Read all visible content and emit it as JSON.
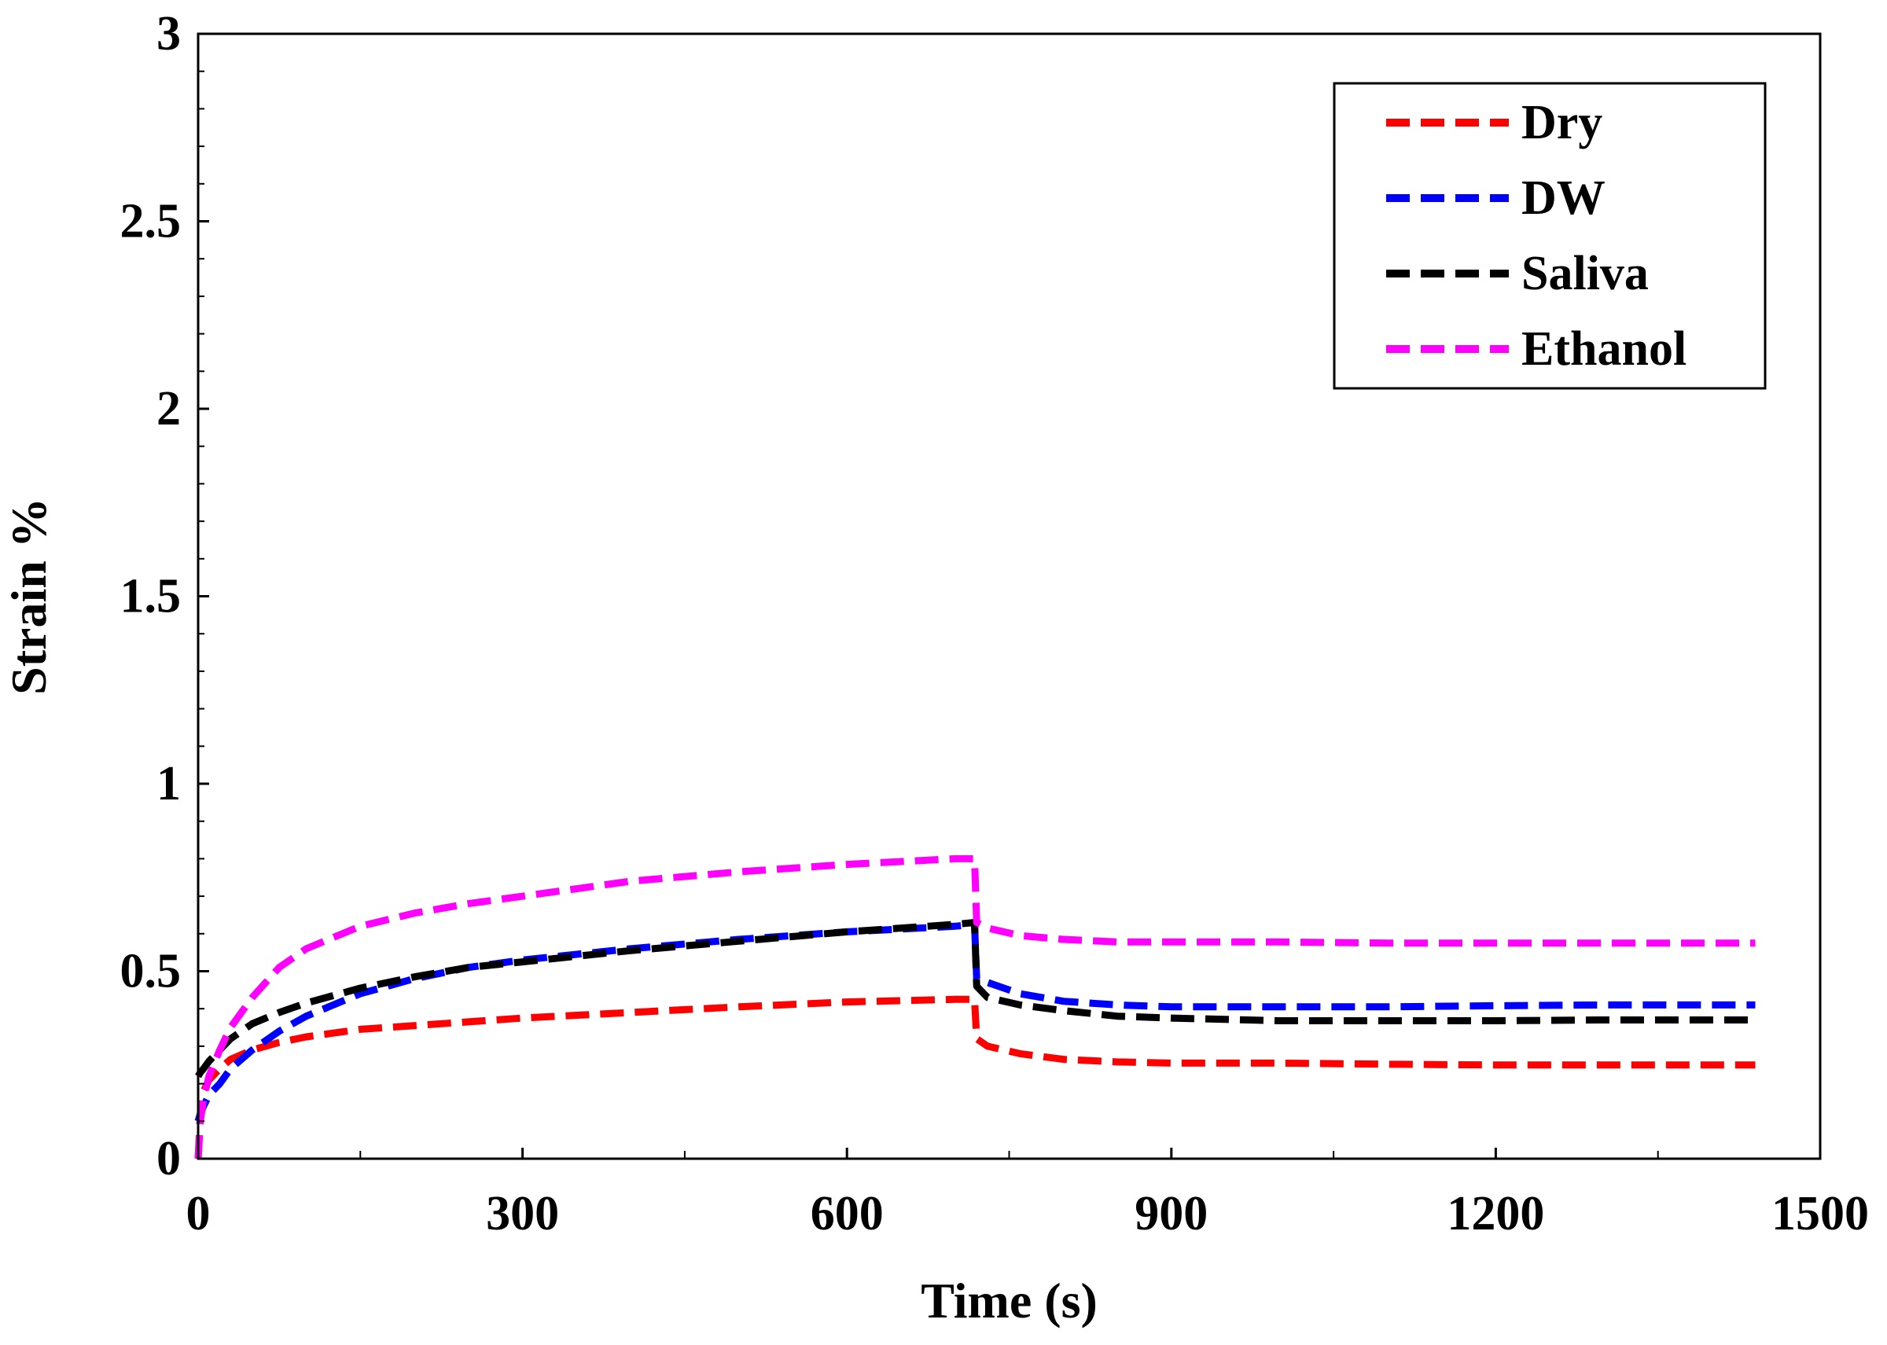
{
  "chart_data": {
    "type": "line",
    "title": "",
    "xlabel": "Time (s)",
    "ylabel": "Strain %",
    "xlim": [
      0,
      1500
    ],
    "ylim": [
      0,
      3
    ],
    "xticks": [
      0,
      300,
      600,
      900,
      1200,
      1500
    ],
    "xtick_labels": [
      "0",
      "300",
      "600",
      "900",
      "1200",
      "1500"
    ],
    "yticks": [
      0,
      0.5,
      1,
      1.5,
      2,
      2.5,
      3
    ],
    "ytick_labels": [
      "0",
      "0.5",
      "1",
      "1.5",
      "2",
      "2.5",
      "3"
    ],
    "grid": false,
    "legend_position": "top-right",
    "series": [
      {
        "name": "Dry",
        "color": "#ff0000",
        "x": [
          0,
          2,
          5,
          10,
          20,
          30,
          50,
          75,
          100,
          150,
          200,
          250,
          300,
          400,
          500,
          600,
          700,
          718,
          720,
          730,
          760,
          800,
          850,
          900,
          1000,
          1100,
          1200,
          1300,
          1440
        ],
        "y": [
          0,
          0.12,
          0.18,
          0.21,
          0.24,
          0.265,
          0.29,
          0.31,
          0.325,
          0.345,
          0.355,
          0.365,
          0.375,
          0.39,
          0.405,
          0.418,
          0.425,
          0.425,
          0.32,
          0.3,
          0.28,
          0.265,
          0.258,
          0.255,
          0.255,
          0.252,
          0.25,
          0.25,
          0.25
        ]
      },
      {
        "name": "DW",
        "color": "#0000ff",
        "x": [
          0,
          2,
          5,
          10,
          20,
          30,
          50,
          75,
          100,
          150,
          200,
          250,
          300,
          400,
          500,
          600,
          700,
          718,
          720,
          730,
          760,
          800,
          850,
          900,
          1000,
          1100,
          1200,
          1300,
          1440
        ],
        "y": [
          0.1,
          0.12,
          0.14,
          0.17,
          0.2,
          0.24,
          0.29,
          0.34,
          0.38,
          0.44,
          0.48,
          0.51,
          0.53,
          0.56,
          0.585,
          0.605,
          0.62,
          0.625,
          0.48,
          0.47,
          0.44,
          0.42,
          0.41,
          0.405,
          0.405,
          0.405,
          0.408,
          0.41,
          0.41
        ]
      },
      {
        "name": "Saliva",
        "color": "#000000",
        "x": [
          0,
          2,
          5,
          10,
          20,
          30,
          50,
          75,
          100,
          150,
          200,
          250,
          300,
          400,
          500,
          600,
          700,
          718,
          720,
          730,
          760,
          800,
          850,
          900,
          1000,
          1100,
          1200,
          1300,
          1440
        ],
        "y": [
          0.22,
          0.23,
          0.24,
          0.26,
          0.29,
          0.32,
          0.36,
          0.39,
          0.415,
          0.455,
          0.485,
          0.51,
          0.525,
          0.555,
          0.58,
          0.605,
          0.625,
          0.63,
          0.46,
          0.43,
          0.41,
          0.395,
          0.38,
          0.375,
          0.368,
          0.368,
          0.368,
          0.37,
          0.37
        ]
      },
      {
        "name": "Ethanol",
        "color": "#ff00ff",
        "x": [
          0,
          2,
          5,
          10,
          20,
          30,
          50,
          75,
          100,
          150,
          200,
          250,
          300,
          400,
          500,
          600,
          700,
          718,
          720,
          730,
          760,
          800,
          850,
          900,
          1000,
          1100,
          1200,
          1300,
          1440
        ],
        "y": [
          0,
          0.1,
          0.16,
          0.22,
          0.29,
          0.35,
          0.43,
          0.51,
          0.56,
          0.62,
          0.655,
          0.68,
          0.7,
          0.74,
          0.765,
          0.785,
          0.8,
          0.8,
          0.63,
          0.615,
          0.595,
          0.585,
          0.578,
          0.578,
          0.578,
          0.575,
          0.575,
          0.575,
          0.575
        ]
      }
    ]
  }
}
